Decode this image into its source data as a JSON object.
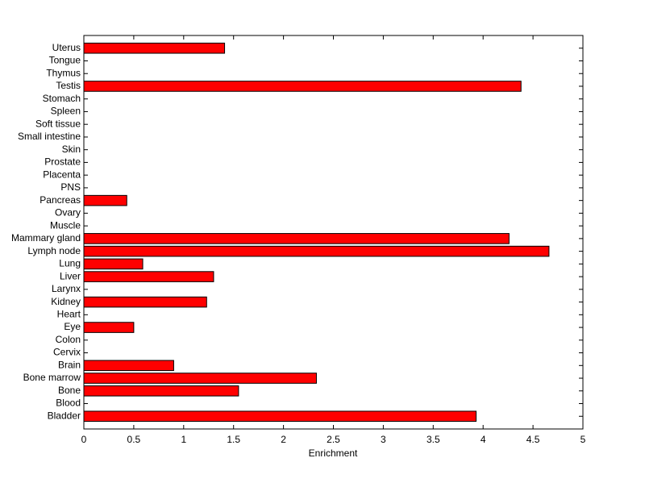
{
  "chart_data": {
    "type": "barh",
    "xlabel": "Enrichment",
    "categories": [
      "Bladder",
      "Blood",
      "Bone",
      "Bone marrow",
      "Brain",
      "Cervix",
      "Colon",
      "Eye",
      "Heart",
      "Kidney",
      "Larynx",
      "Liver",
      "Lung",
      "Lymph node",
      "Mammary gland",
      "Muscle",
      "Ovary",
      "Pancreas",
      "PNS",
      "Placenta",
      "Prostate",
      "Skin",
      "Small intestine",
      "Soft tissue",
      "Spleen",
      "Stomach",
      "Testis",
      "Thymus",
      "Tongue",
      "Uterus"
    ],
    "values": [
      3.93,
      0,
      1.55,
      2.33,
      0.9,
      0,
      0,
      0.5,
      0,
      1.23,
      0,
      1.3,
      0.59,
      4.66,
      4.26,
      0,
      0,
      0.43,
      0,
      0,
      0,
      0,
      0,
      0,
      0,
      0,
      4.38,
      0,
      0,
      1.41
    ],
    "color": "#ff0000",
    "xlim": [
      0,
      5
    ],
    "xticks": [
      0,
      0.5,
      1,
      1.5,
      2,
      2.5,
      3,
      3.5,
      4,
      4.5,
      5
    ]
  }
}
